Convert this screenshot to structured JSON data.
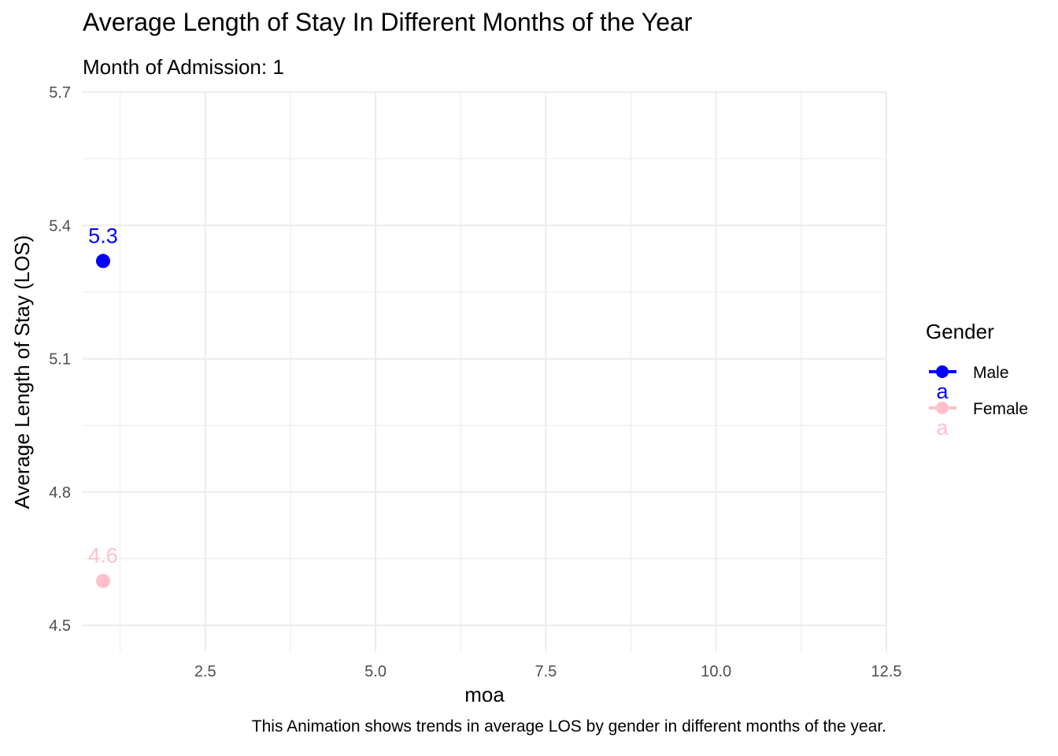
{
  "chart_data": {
    "type": "scatter",
    "title": "Average Length of Stay In Different Months of the Year",
    "subtitle": "Month of Admission: 1",
    "caption": "This Animation shows trends in average LOS by gender in different months of the year.",
    "xlabel": "moa",
    "ylabel": "Average Length of Stay (LOS)",
    "xlim": [
      0.7,
      12.5
    ],
    "ylim": [
      4.44,
      5.7
    ],
    "x_ticks": [
      "2.5",
      "5.0",
      "7.5",
      "10.0",
      "12.5"
    ],
    "y_ticks": [
      "4.5",
      "4.8",
      "5.1",
      "5.4",
      "5.7"
    ],
    "grid": true,
    "legend": {
      "title": "Gender",
      "position": "right",
      "key_glyph": "a"
    },
    "series": [
      {
        "name": "Male",
        "color": "#0000FF",
        "points": [
          {
            "x": 1,
            "y": 5.32,
            "label": "5.3"
          }
        ]
      },
      {
        "name": "Female",
        "color": "#FFC0CB",
        "points": [
          {
            "x": 1,
            "y": 4.6,
            "label": "4.6"
          }
        ]
      }
    ]
  }
}
